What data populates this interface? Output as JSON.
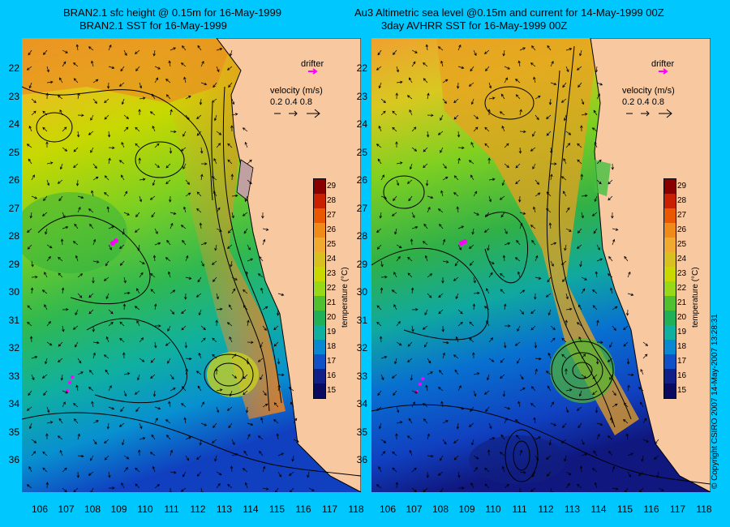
{
  "page": {
    "background": "#00c8ff"
  },
  "left_panel": {
    "title_line1": "BRAN2.1 sfc height @ 0.15m for 16-May-1999",
    "title_line2": "BRAN2.1 SST for 16-May-1999",
    "drifter_label": "drifter",
    "velocity_label": "velocity (m/s)",
    "velocity_scale": "0.2 0.4 0.8"
  },
  "right_panel": {
    "title_line1": "Au3 Altimetric sea level  @0.15m and current for 14-May-1999 00Z",
    "title_line2": "3day AVHRR SST for 16-May-1999 00Z",
    "drifter_label": "drifter",
    "velocity_label": "velocity (m/s)",
    "velocity_scale": "0.2 0.4 0.8"
  },
  "latitudes": [
    "22",
    "23",
    "24",
    "25",
    "26",
    "27",
    "28",
    "29",
    "30",
    "31",
    "32",
    "33",
    "34",
    "35",
    "36"
  ],
  "longitudes": [
    "106",
    "107",
    "108",
    "109",
    "110",
    "111",
    "112",
    "113",
    "114",
    "115",
    "116",
    "117",
    "118"
  ],
  "colorbar": {
    "title": "temperature (°C)",
    "ticks": [
      "29",
      "28",
      "27",
      "26",
      "25",
      "24",
      "23",
      "22",
      "21",
      "20",
      "19",
      "18",
      "17",
      "16",
      "15"
    ],
    "colors": [
      "#880000",
      "#c82000",
      "#e85800",
      "#f08a18",
      "#f0aa30",
      "#d8c020",
      "#c8d800",
      "#98d818",
      "#50c030",
      "#20b058",
      "#10b0a0",
      "#0888d0",
      "#1050c8",
      "#102088",
      "#0a0a60"
    ]
  },
  "land_color": "#f8c8a0",
  "drifter_color": "#ff00ff",
  "copyright": "© Copyright CSIRO 2007   14-May-2007 13:28:31"
}
